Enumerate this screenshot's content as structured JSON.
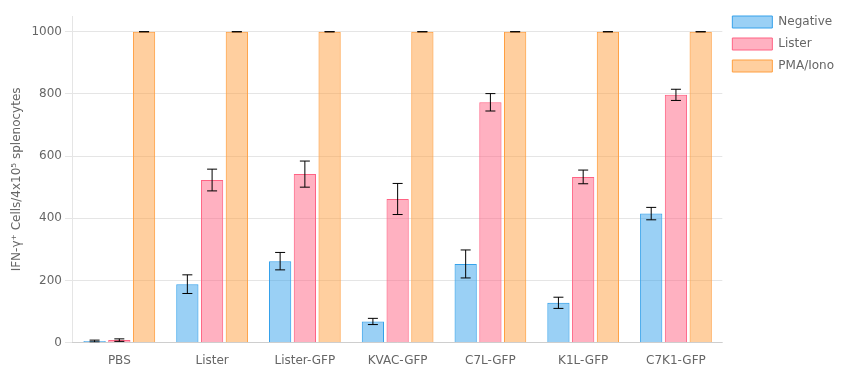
{
  "chart_data": {
    "type": "bar",
    "categories": [
      "PBS",
      "Lister",
      "Lister-GFP",
      "KVAC-GFP",
      "C7L-GFP",
      "K1L-GFP",
      "C7K1-GFP"
    ],
    "series": [
      {
        "name": "Negative",
        "values": [
          5,
          188,
          262,
          68,
          253,
          128,
          415
        ],
        "errors": [
          3,
          30,
          28,
          10,
          45,
          18,
          20
        ]
      },
      {
        "name": "Lister",
        "values": [
          8,
          523,
          542,
          462,
          773,
          533,
          797
        ],
        "errors": [
          4,
          35,
          42,
          50,
          28,
          22,
          18
        ]
      },
      {
        "name": "PMA/Iono",
        "values": [
          1000,
          1000,
          1000,
          1000,
          1000,
          1000,
          1000
        ],
        "errors": [
          0,
          0,
          0,
          0,
          0,
          0,
          0
        ]
      }
    ],
    "ylabel": "IFN-γ⁺ Cells/4x10⁵ splenocytes",
    "ylim": [
      0,
      1050
    ],
    "yticks": [
      0,
      200,
      400,
      600,
      800,
      1000
    ],
    "grid": true,
    "legend": "right"
  }
}
